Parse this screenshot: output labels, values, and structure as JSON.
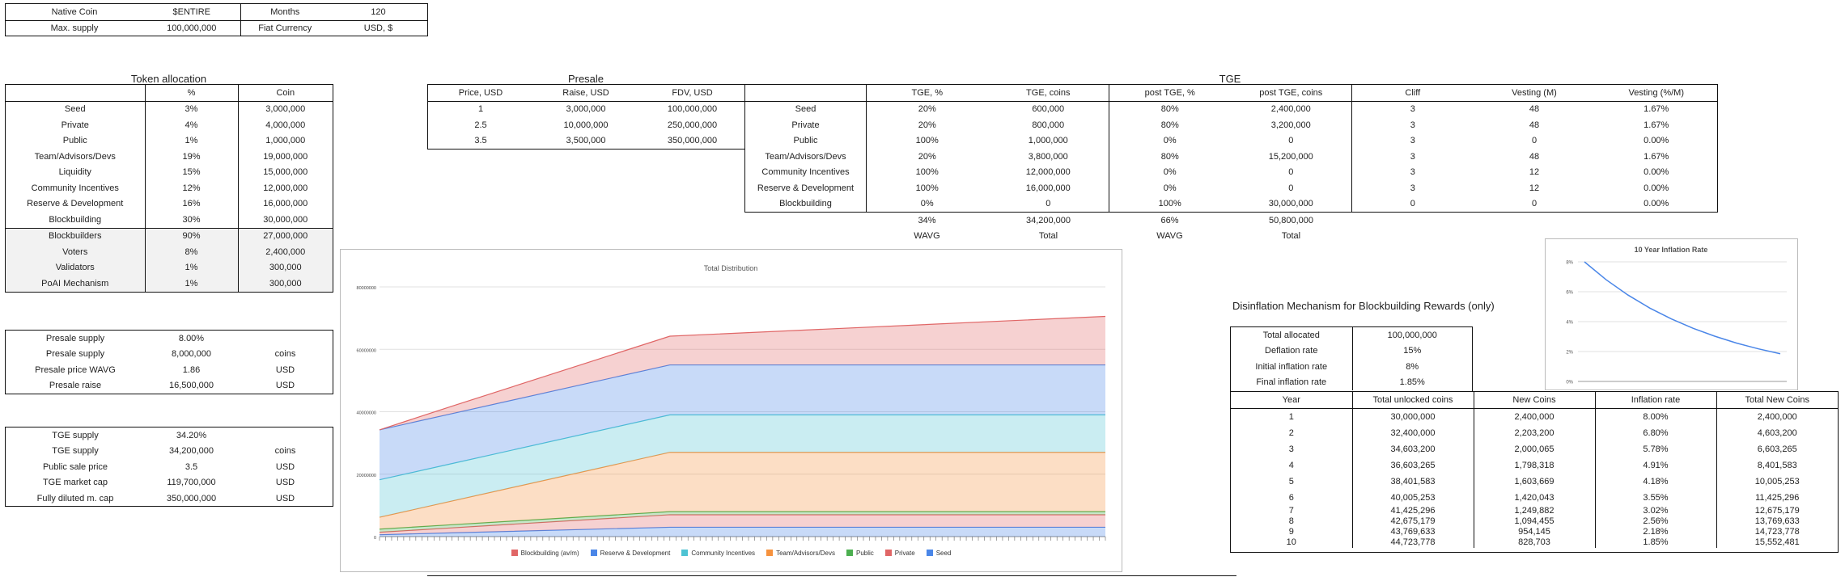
{
  "top_info": {
    "rows": [
      [
        "Native Coin",
        "$ENTIRE",
        "Months",
        "120"
      ],
      [
        "Max. supply",
        "100,000,000",
        "Fiat Currency",
        "USD, $"
      ]
    ]
  },
  "token_allocation": {
    "title": "Token allocation",
    "headers": [
      "",
      "%",
      "Coin"
    ],
    "rows": [
      [
        "Seed",
        "3%",
        "3,000,000"
      ],
      [
        "Private",
        "4%",
        "4,000,000"
      ],
      [
        "Public",
        "1%",
        "1,000,000"
      ],
      [
        "Team/Advisors/Devs",
        "19%",
        "19,000,000"
      ],
      [
        "Liquidity",
        "15%",
        "15,000,000"
      ],
      [
        "Community Incentives",
        "12%",
        "12,000,000"
      ],
      [
        "Reserve & Development",
        "16%",
        "16,000,000"
      ],
      [
        "Blockbuilding",
        "30%",
        "30,000,000"
      ]
    ],
    "sub_rows": [
      [
        "Blockbuilders",
        "90%",
        "27,000,000"
      ],
      [
        "Voters",
        "8%",
        "2,400,000"
      ],
      [
        "Validators",
        "1%",
        "300,000"
      ],
      [
        "PoAI Mechanism",
        "1%",
        "300,000"
      ]
    ]
  },
  "presale_summary": {
    "rows": [
      [
        "Presale supply",
        "8.00%",
        ""
      ],
      [
        "Presale supply",
        "8,000,000",
        "coins"
      ],
      [
        "Presale price WAVG",
        "1.86",
        "USD"
      ],
      [
        "Presale raise",
        "16,500,000",
        "USD"
      ]
    ]
  },
  "tge_summary": {
    "rows": [
      [
        "TGE supply",
        "34.20%",
        ""
      ],
      [
        "TGE supply",
        "34,200,000",
        "coins"
      ],
      [
        "Public sale price",
        "3.5",
        "USD"
      ],
      [
        "TGE market cap",
        "119,700,000",
        "USD"
      ],
      [
        "Fully diluted m. cap",
        "350,000,000",
        "USD"
      ]
    ]
  },
  "presale": {
    "title": "Presale",
    "headers": [
      "Price, USD",
      "Raise, USD",
      "FDV, USD"
    ],
    "rows": [
      [
        "1",
        "3,000,000",
        "100,000,000"
      ],
      [
        "2.5",
        "10,000,000",
        "250,000,000"
      ],
      [
        "3.5",
        "3,500,000",
        "350,000,000"
      ]
    ]
  },
  "tge": {
    "title": "TGE",
    "headers": [
      "",
      "TGE, %",
      "TGE, coins",
      "post TGE, %",
      "post TGE, coins",
      "Cliff",
      "Vesting (M)",
      "Vesting (%/M)"
    ],
    "rows": [
      [
        "Seed",
        "20%",
        "600,000",
        "80%",
        "2,400,000",
        "3",
        "48",
        "1.67%"
      ],
      [
        "Private",
        "20%",
        "800,000",
        "80%",
        "3,200,000",
        "3",
        "48",
        "1.67%"
      ],
      [
        "Public",
        "100%",
        "1,000,000",
        "0%",
        "0",
        "3",
        "0",
        "0.00%"
      ],
      [
        "Team/Advisors/Devs",
        "20%",
        "3,800,000",
        "80%",
        "15,200,000",
        "3",
        "48",
        "1.67%"
      ],
      [
        "Community Incentives",
        "100%",
        "12,000,000",
        "0%",
        "0",
        "3",
        "12",
        "0.00%"
      ],
      [
        "Reserve & Development",
        "100%",
        "16,000,000",
        "0%",
        "0",
        "3",
        "12",
        "0.00%"
      ],
      [
        "Blockbuilding",
        "0%",
        "0",
        "100%",
        "30,000,000",
        "0",
        "0",
        "0.00%"
      ]
    ],
    "totals": [
      "",
      "34%",
      "34,200,000",
      "66%",
      "50,800,000"
    ],
    "total_labels": [
      "",
      "WAVG",
      "Total",
      "WAVG",
      "Total"
    ]
  },
  "disinflation": {
    "title": "Disinflation Mechanism for Blockbuilding Rewards (only)",
    "params": [
      [
        "Total allocated",
        "100,000,000"
      ],
      [
        "Deflation rate",
        "15%"
      ],
      [
        "Initial inflation rate",
        "8%"
      ],
      [
        "Final inflation rate",
        "1.85%"
      ]
    ],
    "headers": [
      "Year",
      "Total unlocked coins",
      "New Coins",
      "Inflation rate",
      "Total New Coins"
    ],
    "rows": [
      [
        "1",
        "30,000,000",
        "2,400,000",
        "8.00%",
        "2,400,000"
      ],
      [
        "2",
        "32,400,000",
        "2,203,200",
        "6.80%",
        "4,603,200"
      ],
      [
        "3",
        "34,603,200",
        "2,000,065",
        "5.78%",
        "6,603,265"
      ],
      [
        "4",
        "36,603,265",
        "1,798,318",
        "4.91%",
        "8,401,583"
      ],
      [
        "5",
        "38,401,583",
        "1,603,669",
        "4.18%",
        "10,005,253"
      ],
      [
        "6",
        "40,005,253",
        "1,420,043",
        "3.55%",
        "11,425,296"
      ],
      [
        "7",
        "41,425,296",
        "1,249,882",
        "3.02%",
        "12,675,179"
      ],
      [
        "8",
        "42,675,179",
        "1,094,455",
        "2.56%",
        "13,769,633"
      ],
      [
        "9",
        "43,769,633",
        "954,145",
        "2.18%",
        "14,723,778"
      ],
      [
        "10",
        "44,723,778",
        "828,703",
        "1.85%",
        "15,552,481"
      ]
    ]
  },
  "chart_data": [
    {
      "type": "area",
      "title": "Total Distribution",
      "xlabel": "",
      "ylabel": "",
      "ylim": [
        0,
        80000000
      ],
      "yticks": [
        "0",
        "20000000",
        "40000000",
        "60000000",
        "80000000"
      ],
      "x": [
        0,
        12,
        48,
        120
      ],
      "stacked": true,
      "series": [
        {
          "name": "Seed",
          "color": "#4a86e8",
          "values": [
            600000,
            1200000,
            3000000,
            3000000
          ]
        },
        {
          "name": "Private",
          "color": "#e06666",
          "values": [
            800000,
            1600000,
            4000000,
            4000000
          ]
        },
        {
          "name": "Public",
          "color": "#4caf50",
          "values": [
            1000000,
            1000000,
            1000000,
            1000000
          ]
        },
        {
          "name": "Team/Advisors/Devs",
          "color": "#f6923e",
          "values": [
            3800000,
            7600000,
            19000000,
            19000000
          ]
        },
        {
          "name": "Community Incentives",
          "color": "#4ec3d3",
          "values": [
            12000000,
            12000000,
            12000000,
            12000000
          ]
        },
        {
          "name": "Reserve & Development",
          "color": "#4a86e8",
          "values": [
            16000000,
            16000000,
            16000000,
            16000000
          ]
        },
        {
          "name": "Blockbuilding (av/m)",
          "color": "#e06666",
          "values": [
            0,
            2400000,
            9200000,
            15552481
          ]
        }
      ],
      "legend_order": [
        "Blockbuilding (av/m)",
        "Reserve & Development",
        "Community Incentives",
        "Team/Advisors/Devs",
        "Public",
        "Private",
        "Seed"
      ],
      "legend": "bottom",
      "grid": true
    },
    {
      "type": "line",
      "title": "10 Year Inflation Rate",
      "xlabel": "",
      "ylabel": "",
      "x": [
        1,
        2,
        3,
        4,
        5,
        6,
        7,
        8,
        9,
        10
      ],
      "ylim": [
        0,
        8
      ],
      "yticks": [
        "0%",
        "2%",
        "4%",
        "6%",
        "8%"
      ],
      "series": [
        {
          "color": "#4a86e8",
          "values": [
            8.0,
            6.8,
            5.78,
            4.91,
            4.18,
            3.55,
            3.02,
            2.56,
            2.18,
            1.85
          ]
        }
      ],
      "grid": true
    }
  ]
}
